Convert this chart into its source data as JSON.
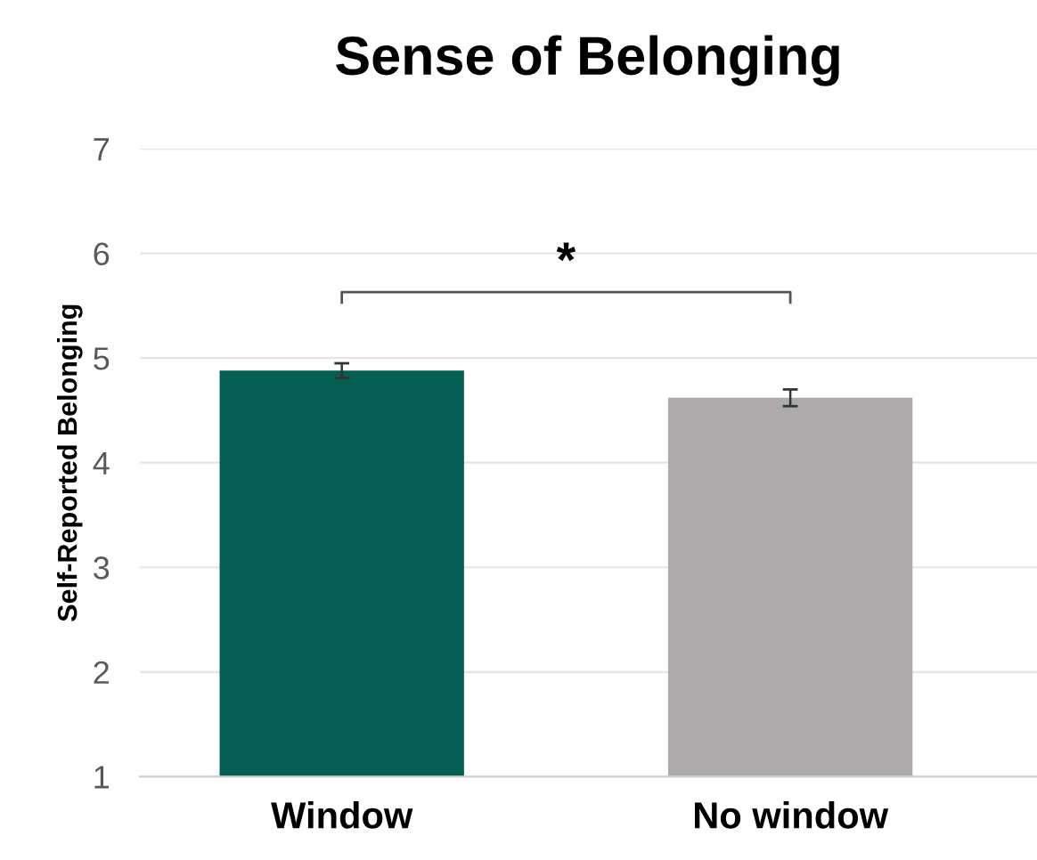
{
  "chart_data": {
    "type": "bar",
    "title": "Sense of Belonging",
    "ylabel": "Self-Reported Belonging",
    "categories": [
      "Window",
      "No window"
    ],
    "values": [
      4.88,
      4.62
    ],
    "colors": [
      "#055e52",
      "#adaaab"
    ],
    "errors": [
      0.07,
      0.08
    ],
    "ylim": [
      1,
      7
    ],
    "yticks": [
      1,
      2,
      3,
      4,
      5,
      6,
      7
    ],
    "grid": "y",
    "annotations": [
      "*"
    ]
  }
}
